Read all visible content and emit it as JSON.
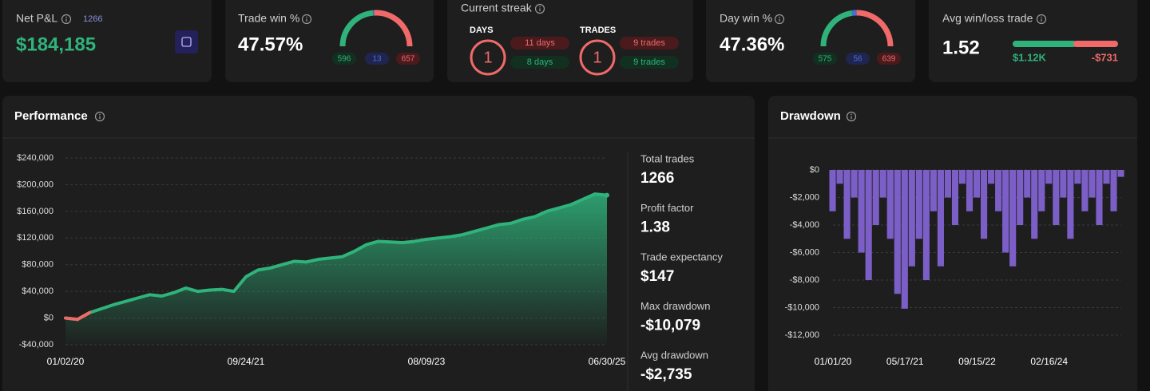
{
  "cards": {
    "net_pnl": {
      "title": "Net P&L",
      "count": 1266,
      "value": "$184,185"
    },
    "trade_win": {
      "title": "Trade win %",
      "value": "47.57%",
      "gauge": [
        596,
        13,
        657
      ]
    },
    "streak": {
      "title": "Current streak",
      "days": {
        "label": "DAYS",
        "current": 1,
        "badges": [
          "11 days",
          "8 days"
        ]
      },
      "trades": {
        "label": "TRADES",
        "current": 1,
        "badges": [
          "9 trades",
          "9 trades"
        ]
      }
    },
    "day_win": {
      "title": "Day win %",
      "value": "47.36%",
      "gauge": [
        575,
        56,
        639
      ]
    },
    "avg_win_loss": {
      "title": "Avg win/loss trade",
      "value": "1.52",
      "win": "$1.12K",
      "loss": "-$731"
    }
  },
  "gauge_colors": [
    "#2fb37b",
    "#4a6fd1",
    "#f06a6a"
  ],
  "chart_data": [
    {
      "type": "area",
      "title": "Performance",
      "color": "#2fb37b",
      "negative_color": "#f06a6a",
      "grid": true,
      "categories": [
        "01/02/20",
        null,
        null,
        null,
        null,
        null,
        null,
        null,
        null,
        null,
        null,
        null,
        null,
        null,
        null,
        "09/24/21",
        null,
        null,
        null,
        null,
        null,
        null,
        null,
        null,
        null,
        null,
        null,
        null,
        null,
        null,
        "08/09/23",
        null,
        null,
        null,
        null,
        null,
        null,
        null,
        null,
        null,
        null,
        null,
        null,
        null,
        null,
        "06/30/25"
      ],
      "values": [
        0,
        -2000,
        8000,
        14000,
        20000,
        25000,
        30000,
        35000,
        33000,
        38000,
        45000,
        40000,
        42000,
        43000,
        40000,
        62000,
        72000,
        75000,
        80000,
        85000,
        84000,
        88000,
        90000,
        92000,
        100000,
        110000,
        115000,
        114000,
        113000,
        115000,
        118000,
        120000,
        122000,
        125000,
        130000,
        135000,
        140000,
        142000,
        148000,
        152000,
        160000,
        165000,
        170000,
        178000,
        186000,
        184185
      ],
      "ylim": [
        -40000,
        240000
      ],
      "yticks": [
        {
          "value": -40000,
          "label": "-$40,000"
        },
        {
          "value": 0,
          "label": "$0"
        },
        {
          "value": 40000,
          "label": "$40,000"
        },
        {
          "value": 80000,
          "label": "$80,000"
        },
        {
          "value": 120000,
          "label": "$120,000"
        },
        {
          "value": 160000,
          "label": "$160,000"
        },
        {
          "value": 200000,
          "label": "$200,000"
        },
        {
          "value": 240000,
          "label": "$240,000"
        }
      ]
    },
    {
      "type": "bar",
      "title": "Drawdown",
      "color": "#7b5fc7",
      "grid": true,
      "categories": [
        "01/01/20",
        null,
        null,
        null,
        null,
        null,
        null,
        null,
        null,
        null,
        "05/17/21",
        null,
        null,
        null,
        null,
        null,
        null,
        null,
        null,
        null,
        "09/15/22",
        null,
        null,
        null,
        null,
        null,
        null,
        null,
        null,
        null,
        "02/16/24",
        null,
        null,
        null,
        null,
        null,
        null,
        null,
        null,
        null,
        null
      ],
      "values": [
        -3000,
        -1000,
        -5000,
        -2000,
        -6000,
        -8000,
        -4000,
        -2000,
        -5000,
        -9000,
        -10079,
        -7000,
        -5000,
        -8000,
        -3000,
        -7000,
        -2000,
        -4000,
        -1000,
        -3000,
        -2000,
        -5000,
        -1000,
        -3000,
        -6000,
        -7000,
        -4000,
        -2000,
        -5000,
        -3000,
        -1000,
        -4000,
        -2000,
        -5000,
        -1000,
        -3000,
        -2000,
        -4000,
        -1000,
        -3000,
        -500
      ],
      "ylim": [
        -12000,
        0
      ],
      "yticks": [
        {
          "value": -12000,
          "label": "-$12,000"
        },
        {
          "value": -10000,
          "label": "-$10,000"
        },
        {
          "value": -8000,
          "label": "-$8,000"
        },
        {
          "value": -6000,
          "label": "-$6,000"
        },
        {
          "value": -4000,
          "label": "-$4,000"
        },
        {
          "value": -2000,
          "label": "-$2,000"
        },
        {
          "value": 0,
          "label": "$0"
        }
      ]
    }
  ],
  "stats": [
    {
      "label": "Total trades",
      "value": "1266"
    },
    {
      "label": "Profit factor",
      "value": "1.38"
    },
    {
      "label": "Trade expectancy",
      "value": "$147"
    },
    {
      "label": "Max drawdown",
      "value": "-$10,079"
    },
    {
      "label": "Avg drawdown",
      "value": "-$2,735"
    }
  ]
}
